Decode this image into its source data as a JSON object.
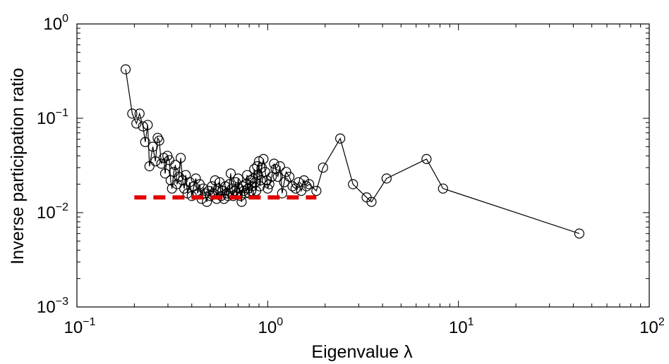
{
  "chart_data": {
    "type": "scatter",
    "xlabel": "Eigenvalue λ",
    "ylabel": "Inverse participation ratio",
    "x_scale": "log",
    "y_scale": "log",
    "xlim": [
      0.1,
      100
    ],
    "ylim": [
      0.001,
      1
    ],
    "grid": false,
    "x_ticks": [
      {
        "base": "10",
        "exp": "−1",
        "value": 0.1
      },
      {
        "base": "10",
        "exp": "0",
        "value": 1
      },
      {
        "base": "10",
        "exp": "1",
        "value": 10
      },
      {
        "base": "10",
        "exp": "2",
        "value": 100
      }
    ],
    "y_ticks": [
      {
        "base": "10",
        "exp": "0",
        "value": 1
      },
      {
        "base": "10",
        "exp": "−1",
        "value": 0.1
      },
      {
        "base": "10",
        "exp": "−2",
        "value": 0.01
      },
      {
        "base": "10",
        "exp": "−3",
        "value": 0.001
      }
    ],
    "series": [
      {
        "style": "black line with open circle markers",
        "color": "#000000",
        "points": [
          [
            0.18,
            0.33
          ],
          [
            0.195,
            0.112
          ],
          [
            0.205,
            0.088
          ],
          [
            0.213,
            0.112
          ],
          [
            0.222,
            0.082
          ],
          [
            0.228,
            0.056
          ],
          [
            0.235,
            0.085
          ],
          [
            0.24,
            0.031
          ],
          [
            0.25,
            0.05
          ],
          [
            0.258,
            0.035
          ],
          [
            0.265,
            0.062
          ],
          [
            0.27,
            0.058
          ],
          [
            0.277,
            0.033
          ],
          [
            0.285,
            0.038
          ],
          [
            0.29,
            0.026
          ],
          [
            0.298,
            0.04
          ],
          [
            0.305,
            0.036
          ],
          [
            0.31,
            0.022
          ],
          [
            0.315,
            0.018
          ],
          [
            0.322,
            0.027
          ],
          [
            0.328,
            0.032
          ],
          [
            0.335,
            0.02
          ],
          [
            0.343,
            0.024
          ],
          [
            0.35,
            0.038
          ],
          [
            0.358,
            0.022
          ],
          [
            0.365,
            0.018
          ],
          [
            0.372,
            0.025
          ],
          [
            0.38,
            0.016
          ],
          [
            0.39,
            0.021
          ],
          [
            0.4,
            0.015
          ],
          [
            0.41,
            0.019
          ],
          [
            0.42,
            0.023
          ],
          [
            0.43,
            0.016
          ],
          [
            0.44,
            0.02
          ],
          [
            0.45,
            0.014
          ],
          [
            0.46,
            0.018
          ],
          [
            0.47,
            0.016
          ],
          [
            0.48,
            0.013
          ],
          [
            0.49,
            0.017
          ],
          [
            0.5,
            0.015
          ],
          [
            0.51,
            0.019
          ],
          [
            0.52,
            0.016
          ],
          [
            0.53,
            0.022
          ],
          [
            0.54,
            0.014
          ],
          [
            0.55,
            0.018
          ],
          [
            0.56,
            0.021
          ],
          [
            0.57,
            0.015
          ],
          [
            0.58,
            0.017
          ],
          [
            0.59,
            0.014
          ],
          [
            0.6,
            0.019
          ],
          [
            0.61,
            0.016
          ],
          [
            0.62,
            0.015
          ],
          [
            0.63,
            0.02
          ],
          [
            0.64,
            0.026
          ],
          [
            0.65,
            0.018
          ],
          [
            0.66,
            0.015
          ],
          [
            0.67,
            0.017
          ],
          [
            0.68,
            0.021
          ],
          [
            0.69,
            0.016
          ],
          [
            0.7,
            0.023
          ],
          [
            0.71,
            0.018
          ],
          [
            0.72,
            0.015
          ],
          [
            0.73,
            0.013
          ],
          [
            0.74,
            0.019
          ],
          [
            0.75,
            0.017
          ],
          [
            0.76,
            0.016
          ],
          [
            0.77,
            0.02
          ],
          [
            0.78,
            0.025
          ],
          [
            0.79,
            0.018
          ],
          [
            0.8,
            0.016
          ],
          [
            0.81,
            0.022
          ],
          [
            0.82,
            0.017
          ],
          [
            0.83,
            0.019
          ],
          [
            0.84,
            0.023
          ],
          [
            0.85,
            0.029
          ],
          [
            0.86,
            0.021
          ],
          [
            0.87,
            0.017
          ],
          [
            0.88,
            0.031
          ],
          [
            0.89,
            0.025
          ],
          [
            0.9,
            0.035
          ],
          [
            0.91,
            0.019
          ],
          [
            0.92,
            0.022
          ],
          [
            0.93,
            0.03
          ],
          [
            0.95,
            0.037
          ],
          [
            0.97,
            0.027
          ],
          [
            0.99,
            0.022
          ],
          [
            1.0,
            0.018
          ],
          [
            1.02,
            0.02
          ],
          [
            1.05,
            0.024
          ],
          [
            1.08,
            0.033
          ],
          [
            1.1,
            0.029
          ],
          [
            1.13,
            0.024
          ],
          [
            1.16,
            0.031
          ],
          [
            1.19,
            0.016
          ],
          [
            1.22,
            0.021
          ],
          [
            1.25,
            0.027
          ],
          [
            1.3,
            0.024
          ],
          [
            1.35,
            0.019
          ],
          [
            1.4,
            0.018
          ],
          [
            1.45,
            0.021
          ],
          [
            1.5,
            0.017
          ],
          [
            1.55,
            0.022
          ],
          [
            1.6,
            0.019
          ],
          [
            1.65,
            0.02
          ],
          [
            1.8,
            0.017
          ],
          [
            1.95,
            0.03
          ],
          [
            2.4,
            0.061
          ],
          [
            2.8,
            0.02
          ],
          [
            3.3,
            0.0145
          ],
          [
            3.5,
            0.013
          ],
          [
            4.2,
            0.023
          ],
          [
            6.8,
            0.037
          ],
          [
            8.3,
            0.018
          ],
          [
            43,
            0.006
          ]
        ]
      },
      {
        "style": "red dashed horizontal reference line",
        "color": "#e00000",
        "points": [
          [
            0.2,
            0.0145
          ],
          [
            1.8,
            0.0145
          ]
        ]
      }
    ]
  }
}
